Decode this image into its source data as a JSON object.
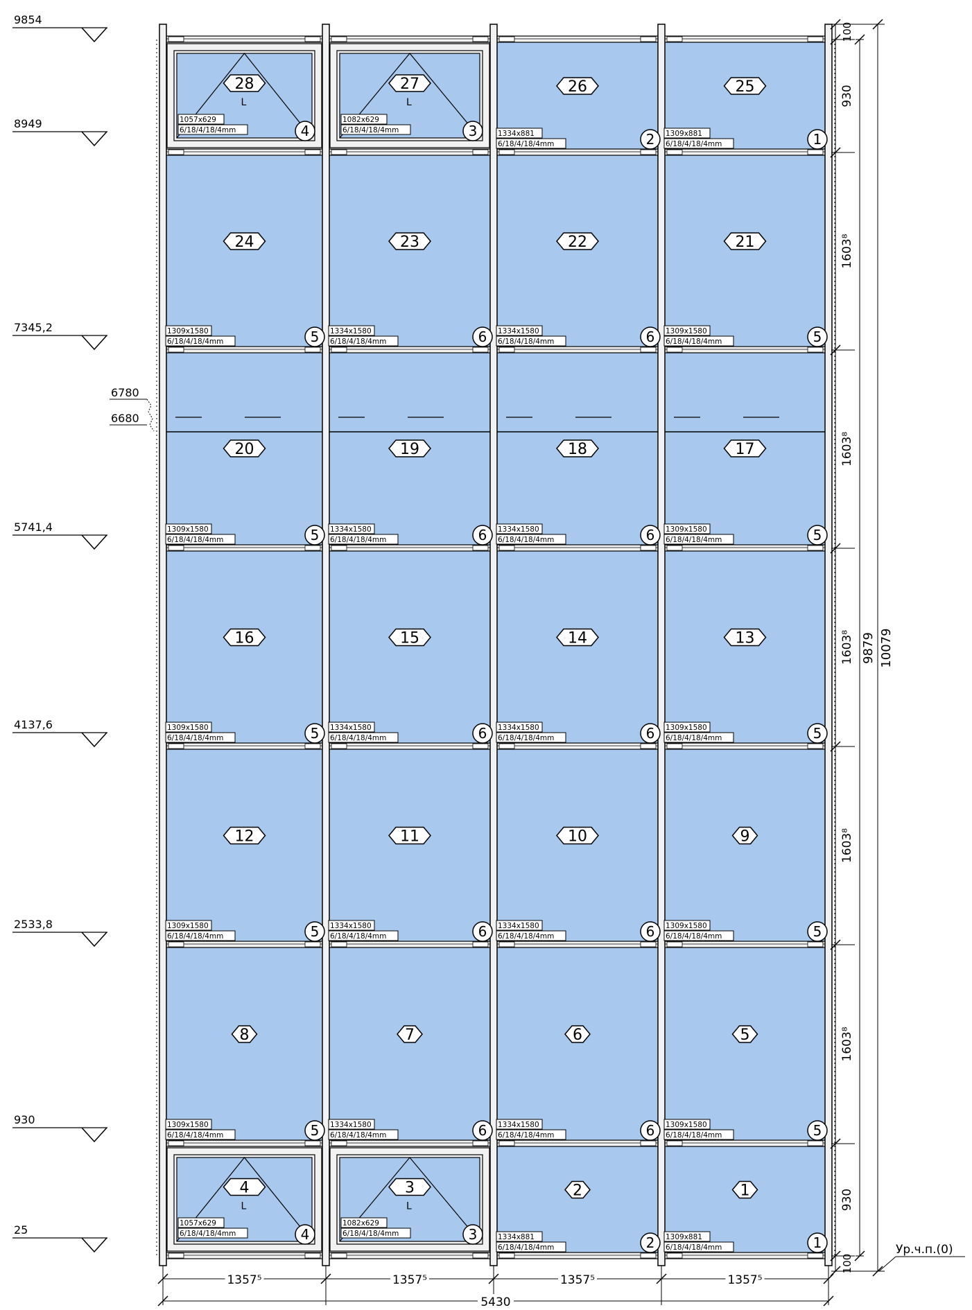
{
  "levels": [
    {
      "label": "9854"
    },
    {
      "label": "8949"
    },
    {
      "label": "7345,2"
    },
    {
      "label": "5741,4"
    },
    {
      "label": "4137,6"
    },
    {
      "label": "2533,8"
    },
    {
      "label": "930"
    },
    {
      "label": "25"
    }
  ],
  "extra_levels": {
    "upper": "6780",
    "lower": "6680"
  },
  "rows": [
    {
      "cells": [
        {
          "num": "28",
          "size": "1057x629",
          "spec": "6/18/4/18/4mm",
          "type": "4",
          "sash": true,
          "open": "L"
        },
        {
          "num": "27",
          "size": "1082x629",
          "spec": "6/18/4/18/4mm",
          "type": "3",
          "sash": true,
          "open": "L"
        },
        {
          "num": "26",
          "size": "1334x881",
          "spec": "6/18/4/18/4mm",
          "type": "2"
        },
        {
          "num": "25",
          "size": "1309x881",
          "spec": "6/18/4/18/4mm",
          "type": "1"
        }
      ]
    },
    {
      "cells": [
        {
          "num": "24",
          "size": "1309x1580",
          "spec": "6/18/4/18/4mm",
          "type": "5"
        },
        {
          "num": "23",
          "size": "1334x1580",
          "spec": "6/18/4/18/4mm",
          "type": "6"
        },
        {
          "num": "22",
          "size": "1334x1580",
          "spec": "6/18/4/18/4mm",
          "type": "6"
        },
        {
          "num": "21",
          "size": "1309x1580",
          "spec": "6/18/4/18/4mm",
          "type": "5"
        }
      ]
    },
    {
      "cells": [
        {
          "num": "20",
          "size": "1309x1580",
          "spec": "6/18/4/18/4mm",
          "type": "5"
        },
        {
          "num": "19",
          "size": "1334x1580",
          "spec": "6/18/4/18/4mm",
          "type": "6"
        },
        {
          "num": "18",
          "size": "1334x1580",
          "spec": "6/18/4/18/4mm",
          "type": "6"
        },
        {
          "num": "17",
          "size": "1309x1580",
          "spec": "6/18/4/18/4mm",
          "type": "5"
        }
      ]
    },
    {
      "cells": [
        {
          "num": "16",
          "size": "1309x1580",
          "spec": "6/18/4/18/4mm",
          "type": "5"
        },
        {
          "num": "15",
          "size": "1334x1580",
          "spec": "6/18/4/18/4mm",
          "type": "6"
        },
        {
          "num": "14",
          "size": "1334x1580",
          "spec": "6/18/4/18/4mm",
          "type": "6"
        },
        {
          "num": "13",
          "size": "1309x1580",
          "spec": "6/18/4/18/4mm",
          "type": "5"
        }
      ]
    },
    {
      "cells": [
        {
          "num": "12",
          "size": "1309x1580",
          "spec": "6/18/4/18/4mm",
          "type": "5"
        },
        {
          "num": "11",
          "size": "1334x1580",
          "spec": "6/18/4/18/4mm",
          "type": "6"
        },
        {
          "num": "10",
          "size": "1334x1580",
          "spec": "6/18/4/18/4mm",
          "type": "6"
        },
        {
          "num": "9",
          "size": "1309x1580",
          "spec": "6/18/4/18/4mm",
          "type": "5"
        }
      ]
    },
    {
      "cells": [
        {
          "num": "8",
          "size": "1309x1580",
          "spec": "6/18/4/18/4mm",
          "type": "5"
        },
        {
          "num": "7",
          "size": "1334x1580",
          "spec": "6/18/4/18/4mm",
          "type": "6"
        },
        {
          "num": "6",
          "size": "1334x1580",
          "spec": "6/18/4/18/4mm",
          "type": "6"
        },
        {
          "num": "5",
          "size": "1309x1580",
          "spec": "6/18/4/18/4mm",
          "type": "5"
        }
      ]
    },
    {
      "cells": [
        {
          "num": "4",
          "size": "1057x629",
          "spec": "6/18/4/18/4mm",
          "type": "4",
          "sash": true,
          "open": "L"
        },
        {
          "num": "3",
          "size": "1082x629",
          "spec": "6/18/4/18/4mm",
          "type": "3",
          "sash": true,
          "open": "L"
        },
        {
          "num": "2",
          "size": "1334x881",
          "spec": "6/18/4/18/4mm",
          "type": "2"
        },
        {
          "num": "1",
          "size": "1309x881",
          "spec": "6/18/4/18/4mm",
          "type": "1"
        }
      ]
    }
  ],
  "row_dims": [
    "930",
    "1603⁸",
    "1603⁸",
    "1603⁸",
    "1603⁸",
    "1603⁸",
    "930"
  ],
  "edge_dims": {
    "top": "100",
    "bottom": "100"
  },
  "overall_heights": {
    "inner": "9879",
    "outer": "10079"
  },
  "col_dims": [
    "1357⁵",
    "1357⁵",
    "1357⁵",
    "1357⁵"
  ],
  "total_width": "5430",
  "ground_label": "Ур.ч.п.(0)",
  "colors": {
    "glass": "#a9c8ee",
    "line": "#000000",
    "frame": "#f2f2f2"
  }
}
